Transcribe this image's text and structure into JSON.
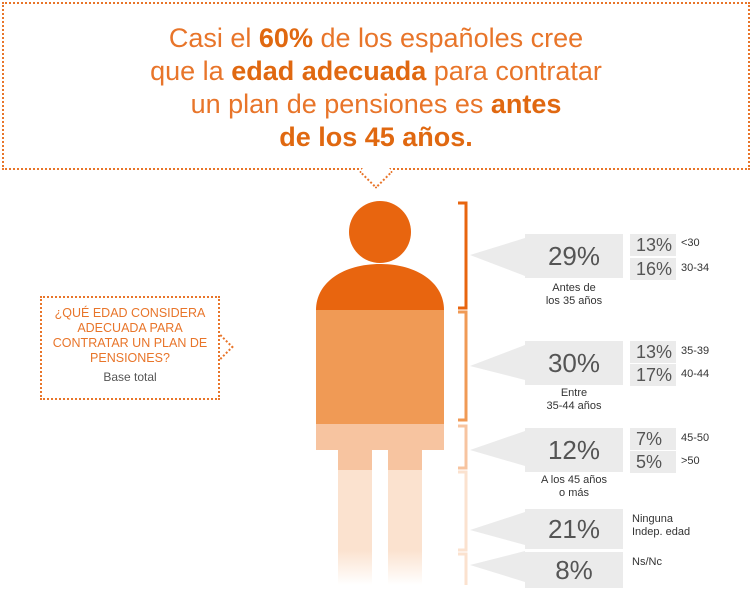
{
  "headline": {
    "part1": "Casi el ",
    "bold1": "60%",
    "part2": " de los españoles cree",
    "part3": "que la ",
    "bold2": "edad adecuada",
    "part4": " para contratar",
    "part5": "un plan de pensiones es ",
    "bold3": "antes",
    "bold4": "de los 45 años."
  },
  "question": {
    "text": "¿QUÉ EDAD CONSIDERA ADECUADA PARA CONTRATAR UN PLAN DE PENSIONES?",
    "base": "Base total"
  },
  "colors": {
    "accent": "#e8650f",
    "mid": "#f09a55",
    "light": "#f7c4a0",
    "pale": "#fbe2cf",
    "box": "#ebebeb"
  },
  "chart_data": {
    "type": "bar",
    "categories": [
      "Antes de los 35 años",
      "Entre 35-44 años",
      "A los 45 años o más",
      "Ninguna Indep. edad",
      "Ns/Nc"
    ],
    "values": [
      29,
      30,
      12,
      21,
      8
    ],
    "groups": [
      {
        "value_label": "29%",
        "caption": "Antes de los 35 años",
        "caption1": "Antes de",
        "caption2": "los 35 años",
        "subs": [
          {
            "value": "13%",
            "label": "<30"
          },
          {
            "value": "16%",
            "label": "30-34"
          }
        ]
      },
      {
        "value_label": "30%",
        "caption": "Entre 35-44 años",
        "caption1": "Entre",
        "caption2": "35-44 años",
        "subs": [
          {
            "value": "13%",
            "label": "35-39"
          },
          {
            "value": "17%",
            "label": "40-44"
          }
        ]
      },
      {
        "value_label": "12%",
        "caption": "A los 45 años o más",
        "caption1": "A los 45 años",
        "caption2": "o más",
        "subs": [
          {
            "value": "7%",
            "label": "45-50"
          },
          {
            "value": "5%",
            "label": ">50"
          }
        ]
      },
      {
        "value_label": "21%",
        "label1": "Ninguna",
        "label2": "Indep. edad"
      },
      {
        "value_label": "8%",
        "label1": "Ns/Nc"
      }
    ]
  }
}
